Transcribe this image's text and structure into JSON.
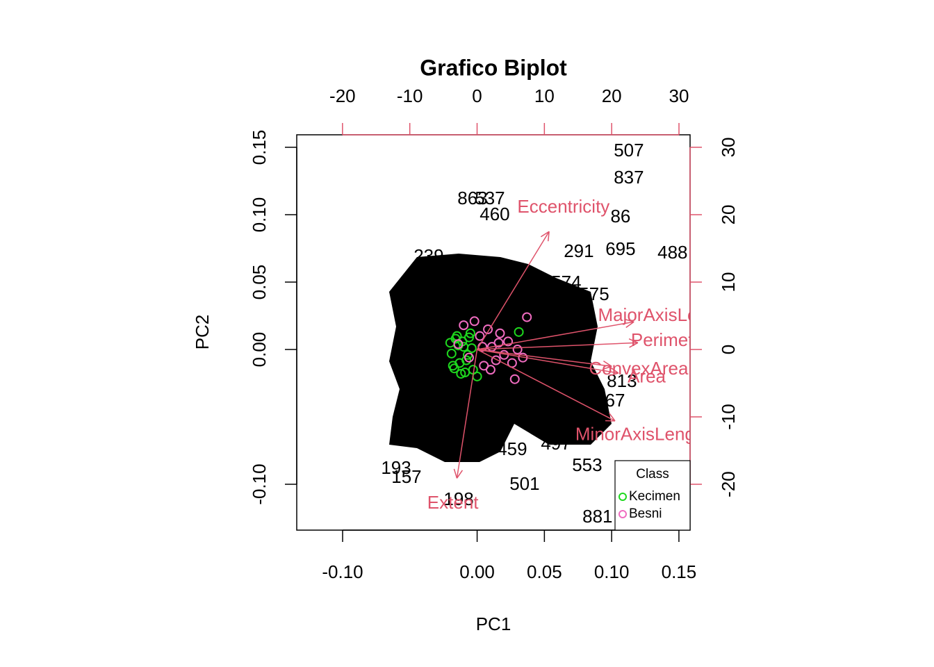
{
  "chart_data": {
    "type": "biplot",
    "title": "Grafico Biplot",
    "x_label": "PC1",
    "y_label": "PC2",
    "xlim": [
      -0.1341,
      0.1583
    ],
    "ylim": [
      -0.134,
      0.1593
    ],
    "xticks": [
      {
        "value": -0.1,
        "label": "-0.10"
      },
      {
        "value": 0,
        "label": "0.00"
      },
      0.05,
      {
        "value": 0.1,
        "label": "0.10"
      },
      0.15
    ],
    "yticks": [
      {
        "value": -0.1,
        "label": "-0.10"
      },
      {
        "value": 0,
        "label": "0.00"
      },
      0.05,
      {
        "value": 0.1,
        "label": "0.10"
      },
      0.15
    ],
    "x2lim": [
      -26.8,
      31.65
    ],
    "y2lim": [
      -26.8,
      31.85
    ],
    "x2ticks": [
      -20,
      -10,
      0,
      10,
      20,
      30
    ],
    "y2ticks": [
      -20,
      -10,
      0,
      10,
      20,
      30
    ],
    "series": [
      {
        "name": "Kecimen",
        "color": "#1ed81e",
        "x": [
          -0.02,
          -0.018,
          -0.015,
          -0.012,
          -0.01,
          -0.008,
          -0.005,
          -0.003,
          0.0,
          -0.019,
          -0.016,
          -0.013,
          -0.011,
          -0.007,
          -0.004,
          -0.017,
          -0.014,
          -0.009,
          -0.006,
          0.031
        ],
        "y": [
          0.005,
          -0.012,
          0.01,
          -0.018,
          0.002,
          -0.008,
          0.012,
          -0.015,
          -0.02,
          -0.003,
          0.008,
          -0.01,
          0.006,
          -0.004,
          0.001,
          -0.014,
          0.003,
          -0.017,
          0.009,
          0.013
        ]
      },
      {
        "name": "Besni",
        "color": "#f06cc0",
        "x": [
          -0.014,
          -0.01,
          -0.006,
          -0.002,
          0.002,
          0.005,
          0.008,
          0.011,
          0.014,
          0.017,
          0.02,
          0.023,
          0.026,
          0.03,
          0.034,
          0.037,
          0.004,
          0.01,
          0.016,
          0.028
        ],
        "y": [
          0.004,
          0.018,
          -0.006,
          0.021,
          0.01,
          -0.012,
          0.015,
          0.002,
          -0.008,
          0.012,
          -0.004,
          0.006,
          -0.01,
          0.0,
          -0.006,
          0.024,
          0.002,
          -0.015,
          0.005,
          -0.022
        ]
      }
    ],
    "point_labels": {
      "labels": [
        "507",
        "837",
        "86",
        "695",
        "488",
        "291",
        "501",
        "198",
        "553",
        "459",
        "881",
        "193",
        "157",
        "537",
        "863",
        "460",
        "574",
        "575",
        "813",
        "867",
        "497",
        "239"
      ],
      "x": [
        0.1128,
        0.1128,
        0.1066,
        0.1066,
        0.1453,
        0.0756,
        0.0353,
        -0.0137,
        0.0818,
        0.026,
        0.0895,
        -0.0602,
        -0.0525,
        0.0095,
        -0.0034,
        0.0131,
        0.0663,
        0.087,
        0.1076,
        0.0988,
        0.0586,
        -0.036
      ],
      "y": [
        0.1469,
        0.1268,
        0.0979,
        0.0737,
        0.0711,
        0.0722,
        -0.1005,
        -0.1119,
        -0.0866,
        -0.0747,
        -0.1247,
        -0.0887,
        -0.0954,
        0.1113,
        0.1113,
        0.0995,
        0.049,
        0.0402,
        -0.0242,
        -0.0387,
        -0.0706,
        0.0686
      ]
    },
    "loadings": {
      "color": "#df536b",
      "names": [
        "Eccentricity",
        "MajorAxisLength",
        "Perimeter",
        "ConvexArea",
        "Area",
        "MinorAxisLength",
        "Extent"
      ],
      "x": [
        10.7,
        23.3,
        23.9,
        20.0,
        21.0,
        20.5,
        -3.0
      ],
      "y": [
        17.5,
        4.1,
        1.0,
        -2.5,
        -3.5,
        -10.6,
        -19.1
      ]
    },
    "legend": {
      "title": "Class",
      "position": "bottomright"
    }
  }
}
